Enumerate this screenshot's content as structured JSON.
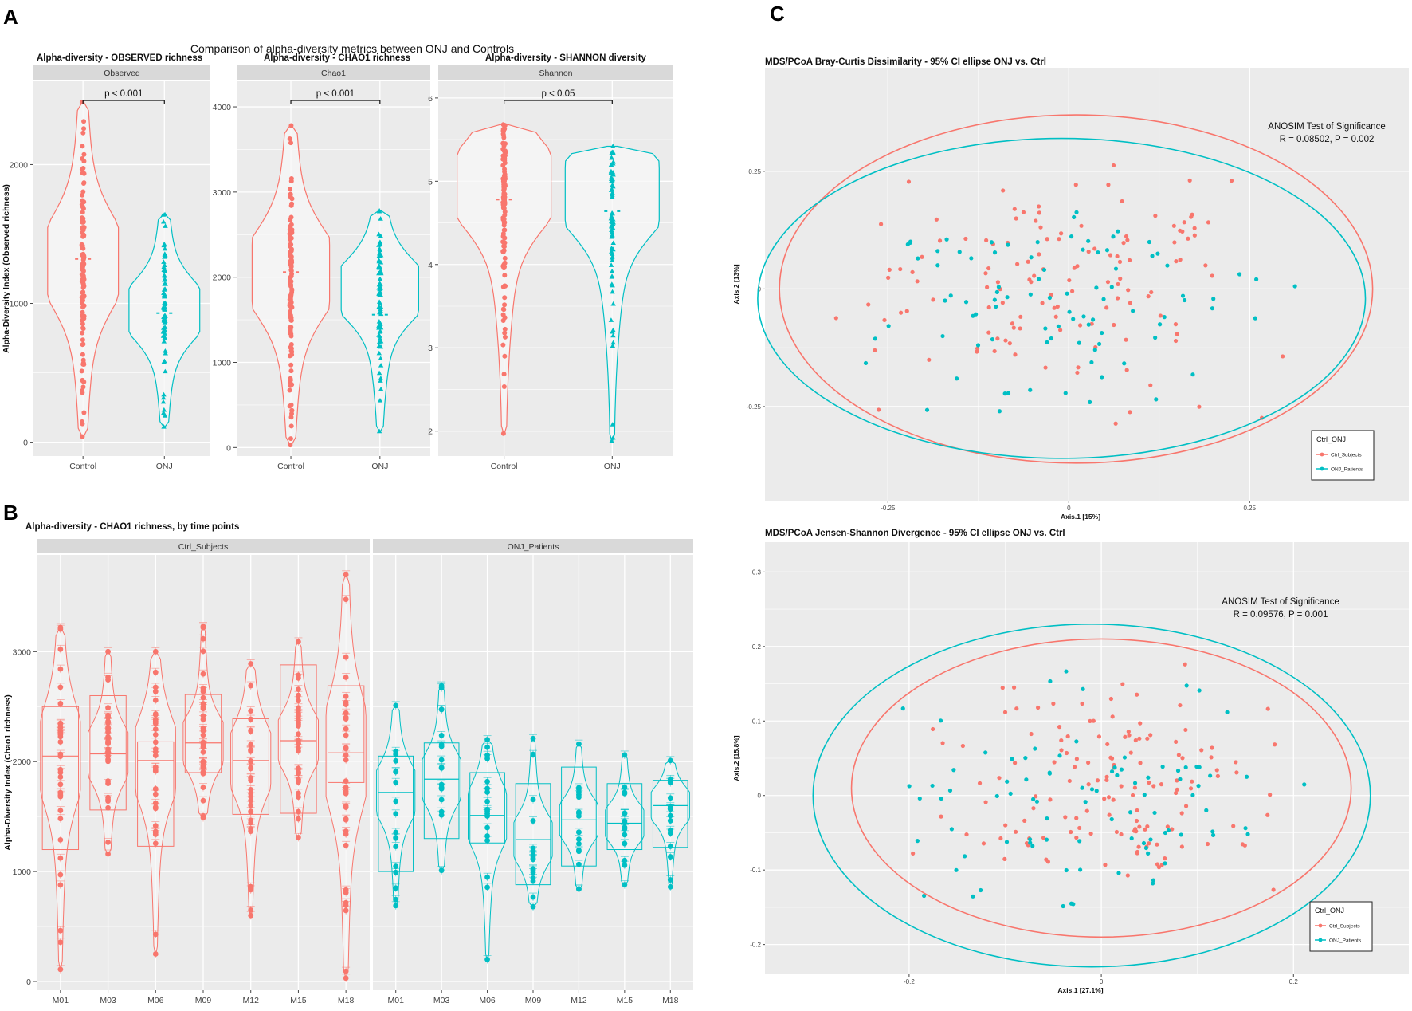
{
  "panel_letters": [
    "A",
    "B",
    "C"
  ],
  "palette": {
    "control": "#f8766d",
    "onj": "#00bfc4",
    "panel_bg": "#ebebeb",
    "strip_bg": "#d9d9d9",
    "grid": "#ffffff"
  },
  "chart_data": [
    {
      "id": "A1",
      "type": "violin",
      "suptitle": "Comparison of alpha-diversity metrics between ONJ and Controls",
      "title": "Alpha-diversity - OBSERVED richness",
      "strip": "Observed",
      "ylabel": "Alpha-Diversity Index (Observed richness)",
      "xlabel": "",
      "ylim": [
        -100,
        2600
      ],
      "yticks": [
        0,
        1000,
        2000
      ],
      "categories": [
        "Control",
        "ONJ"
      ],
      "groups": [
        {
          "name": "Control",
          "min": 40,
          "max": 2450,
          "mean": 1320,
          "mode": 1300
        },
        {
          "name": "ONJ",
          "min": 110,
          "max": 1640,
          "mean": 930,
          "mode": 950
        }
      ],
      "annotation": "p < 0.001"
    },
    {
      "id": "A2",
      "type": "violin",
      "title": "Alpha-diversity - CHAO1 richness",
      "strip": "Chao1",
      "ylabel": "",
      "xlabel": "",
      "ylim": [
        -100,
        4300
      ],
      "yticks": [
        0,
        1000,
        2000,
        3000,
        4000
      ],
      "categories": [
        "Control",
        "ONJ"
      ],
      "groups": [
        {
          "name": "Control",
          "min": 30,
          "max": 3780,
          "mean": 2060,
          "mode": 2050
        },
        {
          "name": "ONJ",
          "min": 190,
          "max": 2780,
          "mean": 1560,
          "mode": 1850
        }
      ],
      "annotation": "p < 0.001"
    },
    {
      "id": "A3",
      "type": "violin",
      "title": "Alpha-diversity - SHANNON diversity",
      "strip": "Shannon",
      "ylabel": "",
      "xlabel": "",
      "ylim": [
        1.7,
        6.2
      ],
      "yticks": [
        2,
        3,
        4,
        5,
        6
      ],
      "categories": [
        "Control",
        "ONJ"
      ],
      "groups": [
        {
          "name": "Control",
          "min": 1.97,
          "max": 5.68,
          "mean": 4.78,
          "mode": 4.95
        },
        {
          "name": "ONJ",
          "min": 1.88,
          "max": 5.42,
          "mean": 4.64,
          "mode": 4.85
        }
      ],
      "annotation": "p < 0.05"
    },
    {
      "id": "B",
      "type": "violin-box",
      "title": "Alpha-diversity - CHAO1 richness, by time points",
      "ylabel": "Alpha-Diversity Index (Chao1 richness)",
      "ylim": [
        -80,
        3880
      ],
      "yticks": [
        0,
        1000,
        2000,
        3000
      ],
      "categories": [
        "M01",
        "M03",
        "M06",
        "M09",
        "M12",
        "M15",
        "M18"
      ],
      "facets": [
        {
          "name": "Ctrl_Subjects",
          "boxes": [
            {
              "min": 110,
              "q1": 1200,
              "median": 2050,
              "q3": 2500,
              "max": 3220
            },
            {
              "min": 1160,
              "q1": 1560,
              "median": 2070,
              "q3": 2600,
              "max": 3000
            },
            {
              "min": 250,
              "q1": 1230,
              "median": 2010,
              "q3": 2180,
              "max": 3000
            },
            {
              "min": 1490,
              "q1": 1900,
              "median": 2170,
              "q3": 2610,
              "max": 3230
            },
            {
              "min": 600,
              "q1": 1520,
              "median": 2010,
              "q3": 2390,
              "max": 2890
            },
            {
              "min": 1310,
              "q1": 1530,
              "median": 2190,
              "q3": 2880,
              "max": 3090
            },
            {
              "min": 30,
              "q1": 1810,
              "median": 2080,
              "q3": 2690,
              "max": 3700
            }
          ]
        },
        {
          "name": "ONJ_Patients",
          "boxes": [
            {
              "min": 690,
              "q1": 1000,
              "median": 1720,
              "q3": 2050,
              "max": 2510
            },
            {
              "min": 1010,
              "q1": 1300,
              "median": 1840,
              "q3": 2170,
              "max": 2690
            },
            {
              "min": 200,
              "q1": 1260,
              "median": 1510,
              "q3": 1900,
              "max": 2200
            },
            {
              "min": 680,
              "q1": 880,
              "median": 1290,
              "q3": 1800,
              "max": 2210
            },
            {
              "min": 840,
              "q1": 1050,
              "median": 1470,
              "q3": 1950,
              "max": 2160
            },
            {
              "min": 880,
              "q1": 1200,
              "median": 1440,
              "q3": 1800,
              "max": 2060
            },
            {
              "min": 860,
              "q1": 1220,
              "median": 1600,
              "q3": 1830,
              "max": 2010
            }
          ]
        }
      ]
    },
    {
      "id": "C1",
      "type": "scatter",
      "title": "MDS/PCoA Bray-Curtis Dissimilarity  -  95% CI ellipse ONJ vs. Ctrl",
      "xlabel": "Axis.1   [15%]",
      "ylabel": "Axis.2   [13%]",
      "xlim": [
        -0.42,
        0.47
      ],
      "ylim": [
        -0.45,
        0.47
      ],
      "xticks": [
        -0.25,
        0,
        0.25
      ],
      "yticks": [
        -0.25,
        0,
        0.25
      ],
      "series": [
        {
          "name": "Ctrl_Subjects",
          "n_points": 130,
          "ellipse": {
            "cx": 0.01,
            "cy": 0.0,
            "rx": 0.41,
            "ry": 0.37
          }
        },
        {
          "name": "ONJ_Patients",
          "n_points": 90,
          "ellipse": {
            "cx": -0.01,
            "cy": -0.02,
            "rx": 0.42,
            "ry": 0.34
          }
        }
      ],
      "annotation": [
        "ANOSIM Test of Significance",
        "R = 0.08502, P = 0.002"
      ],
      "legend": {
        "title": "Ctrl_ONJ",
        "position": "bottom-right"
      }
    },
    {
      "id": "C2",
      "type": "scatter",
      "title": "MDS/PCoA Jensen-Shannon Divergence  -  95% CI ellipse ONJ vs. Ctrl",
      "xlabel": "Axis.1   [27.1%]",
      "ylabel": "Axis.2   [15.8%]",
      "xlim": [
        -0.35,
        0.32
      ],
      "ylim": [
        -0.24,
        0.34
      ],
      "xticks": [
        -0.2,
        0,
        0.2
      ],
      "yticks": [
        -0.2,
        -0.1,
        0,
        0.1,
        0.2,
        0.3
      ],
      "series": [
        {
          "name": "Ctrl_Subjects",
          "n_points": 140,
          "ellipse": {
            "cx": 0.0,
            "cy": 0.01,
            "rx": 0.26,
            "ry": 0.2
          }
        },
        {
          "name": "ONJ_Patients",
          "n_points": 90,
          "ellipse": {
            "cx": -0.01,
            "cy": 0.0,
            "rx": 0.29,
            "ry": 0.23
          }
        }
      ],
      "annotation": [
        "ANOSIM Test of Significance",
        "R = 0.09576, P = 0.001"
      ],
      "legend": {
        "title": "Ctrl_ONJ",
        "position": "bottom-right"
      }
    }
  ]
}
